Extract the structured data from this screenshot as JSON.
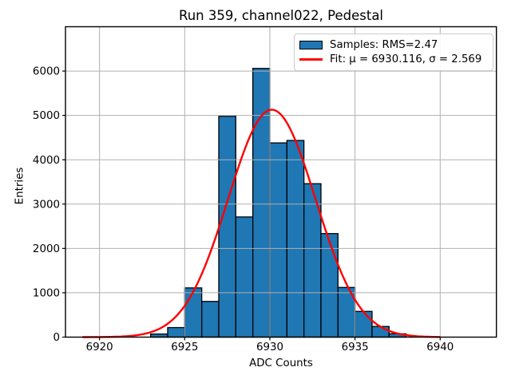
{
  "chart_data": {
    "type": "bar",
    "title": "Run 359, channel022, Pedestal",
    "xlabel": "ADC Counts",
    "ylabel": "Entries",
    "xlim": [
      6918.0,
      6943.3
    ],
    "ylim": [
      0,
      7000
    ],
    "xticks": [
      6920,
      6925,
      6930,
      6935,
      6940
    ],
    "yticks": [
      0,
      1000,
      2000,
      3000,
      4000,
      5000,
      6000
    ],
    "grid": true,
    "grid_above_bars": true,
    "legend_position": "upper right",
    "bin_width": 1,
    "bin_left_edges": [
      6923,
      6924,
      6925,
      6926,
      6927,
      6928,
      6929,
      6930,
      6931,
      6932,
      6933,
      6934,
      6935,
      6936,
      6937
    ],
    "counts": [
      70,
      215,
      1110,
      805,
      4980,
      2710,
      6060,
      4380,
      4435,
      3460,
      2335,
      1120,
      580,
      240,
      75
    ],
    "fit": {
      "mu": 6930.116,
      "sigma": 2.569,
      "amplitude": 5130,
      "x_start": 6919,
      "x_end": 6940
    },
    "legend": {
      "samples_label": "Samples: RMS=2.47",
      "fit_label": "Fit: μ = 6930.116, σ = 2.569"
    },
    "colors": {
      "bar_fill": "#1f77b4",
      "bar_edge": "#000000",
      "fit_line": "#ff0000",
      "grid": "#b0b0b0",
      "spine": "#000000",
      "text": "#000000"
    }
  }
}
